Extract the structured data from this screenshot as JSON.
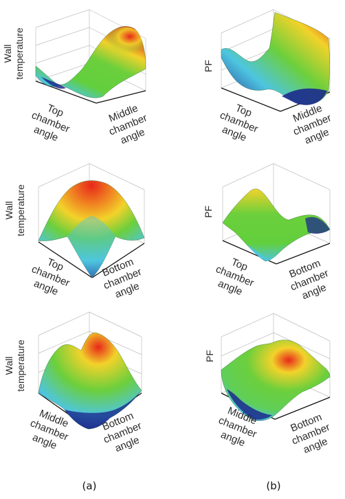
{
  "captions": {
    "a": "(a)",
    "b": "(b)"
  },
  "palette": {
    "high": "#e8281a",
    "mid_high": "#f2d22a",
    "mid": "#6ccf3c",
    "mid_low": "#4ec5e0",
    "low": "#1c2a8c"
  },
  "panels": [
    {
      "id": "a1",
      "z_label": [
        "Wall",
        "temperature"
      ],
      "left_axis": [
        "Top",
        "chamber",
        "angle"
      ],
      "right_axis": [
        "Middle",
        "chamber",
        "angle"
      ]
    },
    {
      "id": "b1",
      "z_label": [
        "PF"
      ],
      "left_axis": [
        "Top",
        "chamber",
        "angle"
      ],
      "right_axis": [
        "Middle",
        "chamber",
        "angle"
      ]
    },
    {
      "id": "a2",
      "z_label": [
        "Wall",
        "temperature"
      ],
      "left_axis": [
        "Top",
        "chamber",
        "angle"
      ],
      "right_axis": [
        "Bottom",
        "chamber",
        "angle"
      ]
    },
    {
      "id": "b2",
      "z_label": [
        "PF"
      ],
      "left_axis": [
        "Top",
        "chamber",
        "angle"
      ],
      "right_axis": [
        "Bottom",
        "chamber",
        "angle"
      ]
    },
    {
      "id": "a3",
      "z_label": [
        "Wall",
        "temperature"
      ],
      "left_axis": [
        "Middle",
        "chamber",
        "angle"
      ],
      "right_axis": [
        "Bottom",
        "chamber",
        "angle"
      ]
    },
    {
      "id": "b3",
      "z_label": [
        "PF"
      ],
      "left_axis": [
        "Middle",
        "chamber",
        "angle"
      ],
      "right_axis": [
        "Bottom",
        "chamber",
        "angle"
      ]
    }
  ]
}
